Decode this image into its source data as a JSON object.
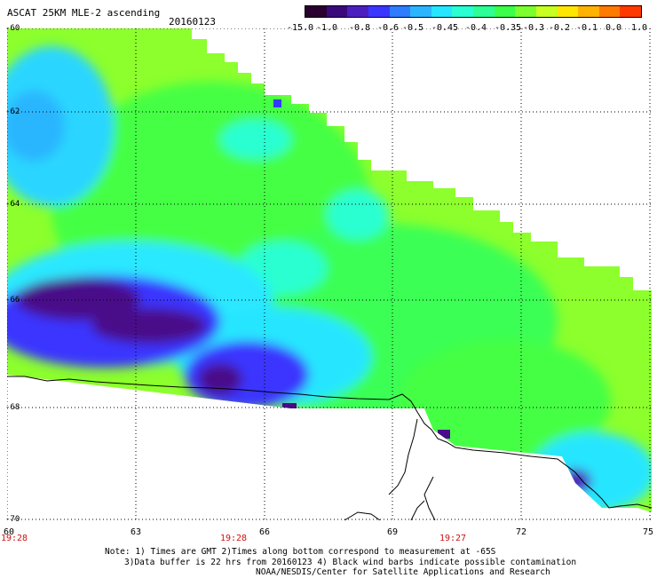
{
  "header": {
    "title": "ASCAT 25KM MLE-2 ascending",
    "date": "20160123"
  },
  "colorbar": {
    "labels": [
      "-15.0",
      "-1.0",
      "-0.8",
      "-0.6",
      "-0.5",
      "-0.45",
      "-0.4",
      "-0.35",
      "-0.3",
      "-0.2",
      "-0.1",
      "0.0",
      "1.0"
    ],
    "colors": [
      "#2a0030",
      "#3a0a7a",
      "#4b1fbf",
      "#3a36ff",
      "#2f7cff",
      "#2bb5ff",
      "#26e6ff",
      "#29ffd2",
      "#2dff96",
      "#3bff4b",
      "#7dff2f",
      "#c7ff22",
      "#ffe600",
      "#ffb300",
      "#ff7a00",
      "#ff3a00"
    ]
  },
  "axes": {
    "lat_labels": [
      "-60",
      "-62",
      "-64",
      "-66",
      "-68",
      "-70"
    ],
    "lon_labels": [
      "60",
      "63",
      "66",
      "69",
      "72",
      "75"
    ]
  },
  "times": [
    "19:28",
    "19:28",
    "19:27"
  ],
  "notes": [
    "Note: 1) Times are GMT 2)Times along bottom correspond to measurement at -65S",
    "3)Data buffer is 22 hrs from 20160123 4) Black wind barbs indicate possible contamination",
    "NOAA/NESDIS/Center for Satellite Applications and Research"
  ],
  "map": {
    "colors": {
      "light_green": "#b9ff2c",
      "green": "#45ff45",
      "cyan": "#29ffd2",
      "light_blue": "#2bb5ff",
      "blue": "#2f3cff",
      "purple": "#4a0a8a"
    }
  }
}
